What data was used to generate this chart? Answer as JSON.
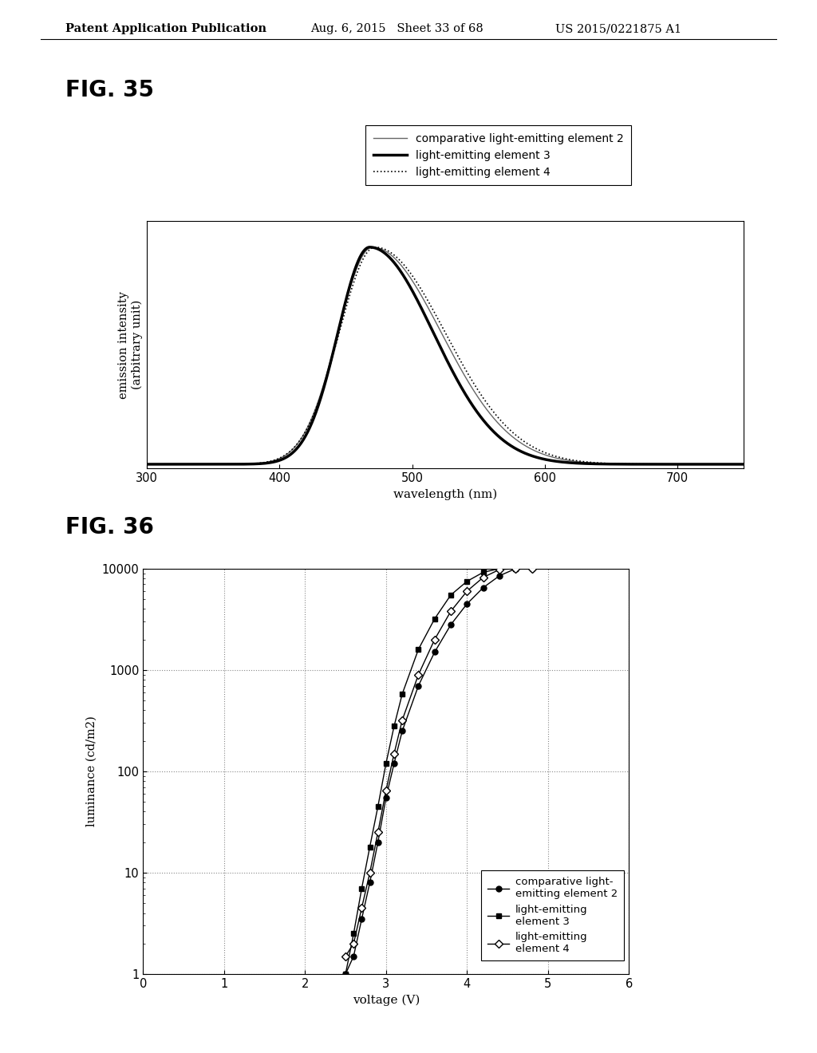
{
  "header_left": "Patent Application Publication",
  "header_mid": "Aug. 6, 2015   Sheet 33 of 68",
  "header_right": "US 2015/0221875 A1",
  "fig35_label": "FIG. 35",
  "fig36_label": "FIG. 36",
  "fig35": {
    "xlabel": "wavelength (nm)",
    "ylabel": "emission intensity\n(arbitrary unit)",
    "xlim": [
      300,
      750
    ],
    "xticks": [
      300,
      400,
      500,
      600,
      700
    ],
    "legend": [
      {
        "label": "comparative light-emitting element 2",
        "lw": 1.0,
        "ls": "-",
        "color": "#666666"
      },
      {
        "label": "light-emitting element 3",
        "lw": 2.5,
        "ls": "-",
        "color": "#000000"
      },
      {
        "label": "light-emitting element 4",
        "lw": 1.2,
        "ls": ":",
        "color": "#000000"
      }
    ]
  },
  "fig36": {
    "xlabel": "voltage (V)",
    "ylabel": "luminance (cd/m2)",
    "xlim": [
      0,
      6
    ],
    "ylim": [
      1,
      10000
    ],
    "xticks": [
      0,
      1,
      2,
      3,
      4,
      5,
      6
    ],
    "yticks_labels": [
      "1",
      "10",
      "100",
      "1000",
      "10000"
    ],
    "legend": [
      {
        "label": "comparative light-\nemitting element 2",
        "marker": "o",
        "mfc": "#000000",
        "color": "#000000"
      },
      {
        "label": "light-emitting\nelement 3",
        "marker": "s",
        "mfc": "#000000",
        "color": "#000000"
      },
      {
        "label": "light-emitting\nelement 4",
        "marker": "D",
        "mfc": "#ffffff",
        "color": "#000000"
      }
    ]
  },
  "background": "#ffffff"
}
